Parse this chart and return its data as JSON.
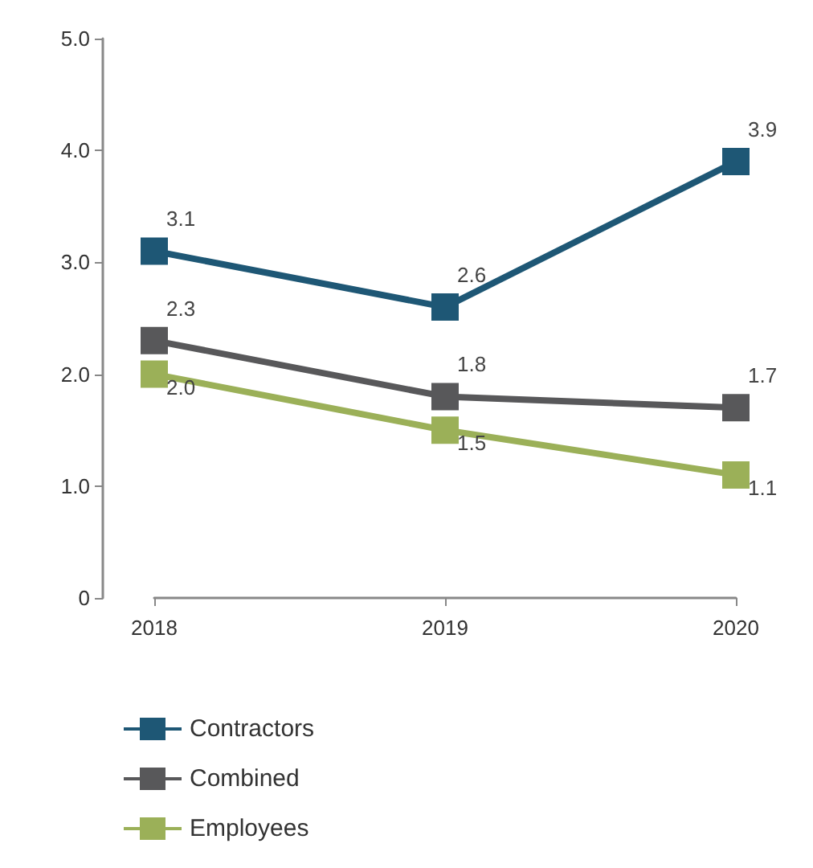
{
  "chart_data": {
    "type": "line",
    "categories": [
      "2018",
      "2019",
      "2020"
    ],
    "series": [
      {
        "name": "Contractors",
        "color": "#1e5775",
        "values": [
          3.1,
          2.6,
          3.9
        ],
        "value_labels": [
          "3.1",
          "2.6",
          "3.9"
        ]
      },
      {
        "name": "Combined",
        "color": "#58585a",
        "values": [
          2.3,
          1.8,
          1.7
        ],
        "value_labels": [
          "2.3",
          "1.8",
          "1.7"
        ]
      },
      {
        "name": "Employees",
        "color": "#9bb058",
        "values": [
          2.0,
          1.5,
          1.1
        ],
        "value_labels": [
          "2.0",
          "1.5",
          "1.1"
        ]
      }
    ],
    "ylim": [
      0,
      5
    ],
    "yticks": [
      0,
      {
        "value": 1,
        "label": "1.0"
      },
      {
        "value": 2,
        "label": "2.0"
      },
      {
        "value": 3,
        "label": "3.0"
      },
      {
        "value": 4,
        "label": "4.0"
      },
      {
        "value": 5,
        "label": "5.0"
      }
    ],
    "marker": "square",
    "line_style": "solid",
    "grid": false,
    "legend": "bottom left"
  }
}
